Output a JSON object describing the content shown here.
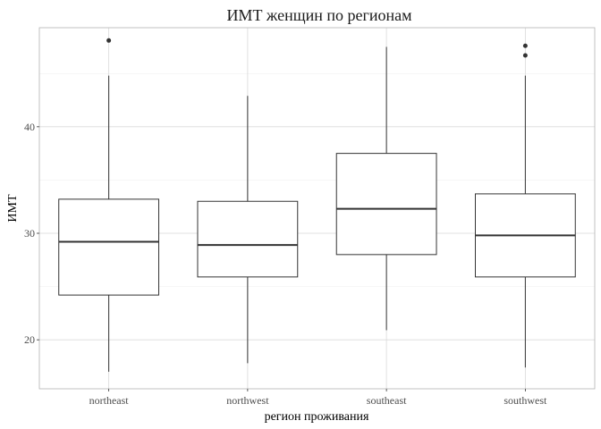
{
  "chart_data": {
    "type": "box",
    "title": "ИМТ женщин по регионам",
    "xlabel": "регион проживания",
    "ylabel": "ИМТ",
    "ylim": [
      15.4,
      49.3
    ],
    "y_ticks": [
      20,
      30,
      40
    ],
    "grid": true,
    "categories": [
      "northeast",
      "northwest",
      "southeast",
      "southwest"
    ],
    "boxes": [
      {
        "category": "northeast",
        "whisker_low": 17.0,
        "q1": 24.2,
        "median": 29.2,
        "q3": 33.2,
        "whisker_high": 44.8,
        "outliers": [
          48.1
        ]
      },
      {
        "category": "northwest",
        "whisker_low": 17.8,
        "q1": 25.9,
        "median": 28.9,
        "q3": 33.0,
        "whisker_high": 42.9,
        "outliers": []
      },
      {
        "category": "southeast",
        "whisker_low": 20.9,
        "q1": 28.0,
        "median": 32.3,
        "q3": 37.5,
        "whisker_high": 47.5,
        "outliers": []
      },
      {
        "category": "southwest",
        "whisker_low": 17.4,
        "q1": 25.9,
        "median": 29.8,
        "q3": 33.7,
        "whisker_high": 44.8,
        "outliers": [
          46.7,
          47.6
        ]
      }
    ]
  }
}
